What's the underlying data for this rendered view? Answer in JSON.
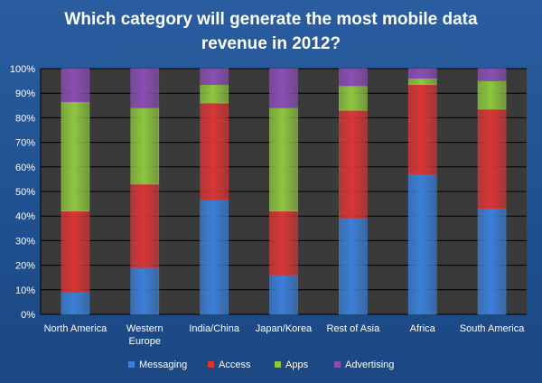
{
  "chart_data": {
    "type": "bar",
    "stacked": true,
    "percent_stacked": true,
    "title": "Which category will generate the most mobile data\nrevenue in 2012?",
    "categories": [
      "North America",
      "Western\nEurope",
      "India/China",
      "Japan/Korea",
      "Rest of Asia",
      "Africa",
      "South America"
    ],
    "series": [
      {
        "name": "Messaging",
        "color": "#3b7fd8",
        "values": [
          9,
          19,
          46.5,
          16,
          39,
          57,
          43
        ]
      },
      {
        "name": "Access",
        "color": "#d93636",
        "values": [
          33,
          34,
          39.5,
          26,
          44,
          36.5,
          40.5
        ]
      },
      {
        "name": "Apps",
        "color": "#8ec63f",
        "values": [
          44.5,
          31,
          7.5,
          42,
          10,
          2.5,
          11.5
        ]
      },
      {
        "name": "Advertising",
        "color": "#8a4fb3",
        "values": [
          13.5,
          16,
          6.5,
          16,
          7,
          4,
          5
        ]
      }
    ],
    "ylim": [
      0,
      100
    ],
    "yticks": [
      "0%",
      "10%",
      "20%",
      "30%",
      "40%",
      "50%",
      "60%",
      "70%",
      "80%",
      "90%",
      "100%"
    ],
    "grid": true,
    "legend_position": "bottom"
  },
  "style": {
    "plot_bg": "#3a3a3a",
    "grid_color": "#000000",
    "text_color": "#ffffff"
  }
}
